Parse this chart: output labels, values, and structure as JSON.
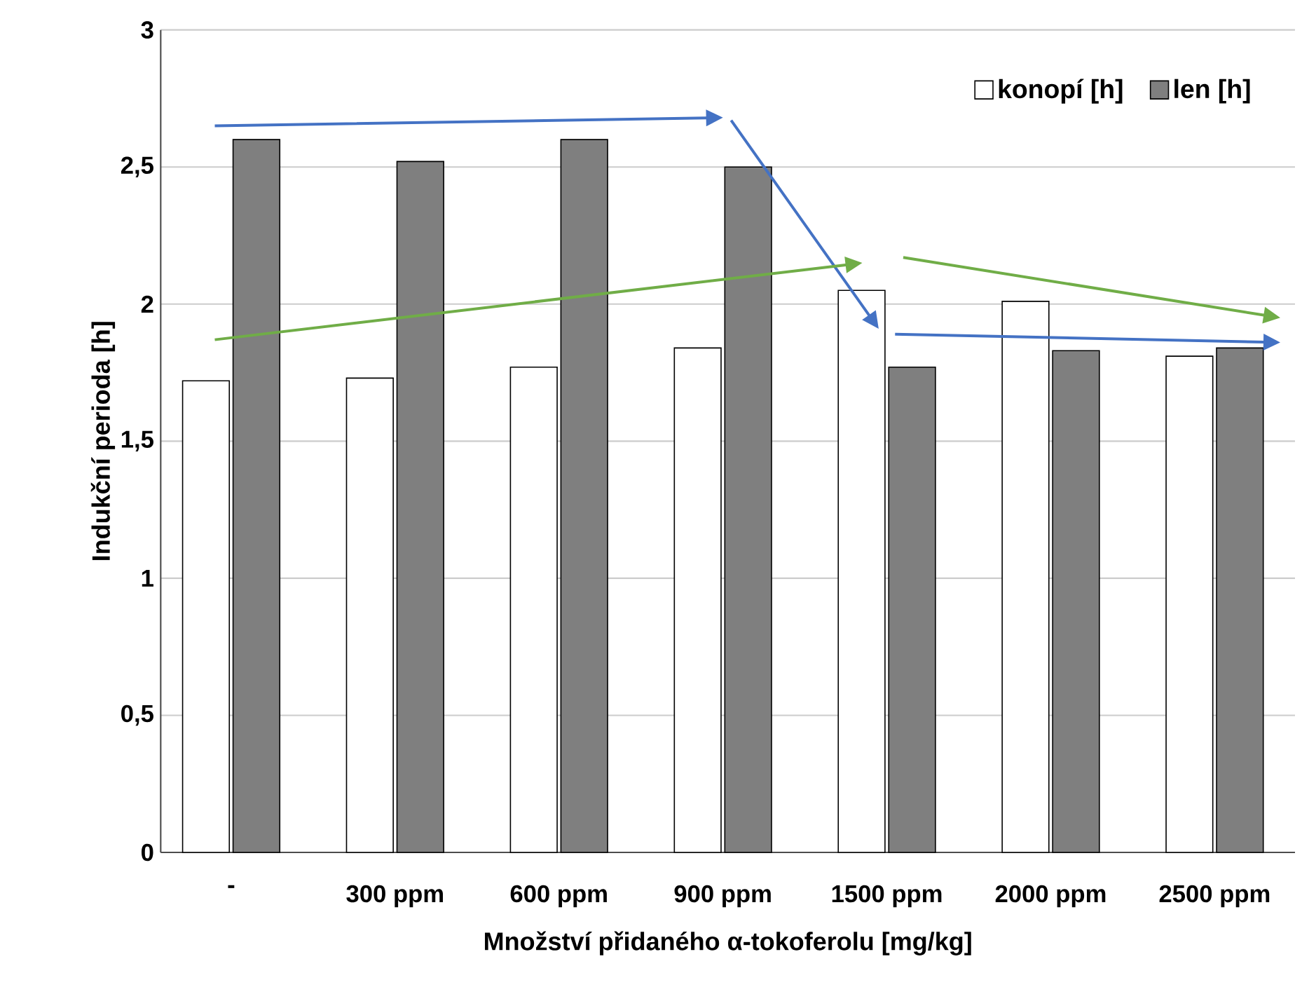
{
  "chart_data": {
    "type": "bar",
    "xlabel": "Množství přidaného α-tokoferolu [mg/kg]",
    "ylabel": "Indukční perioda [h]",
    "categories": [
      "-",
      "300 ppm",
      "600 ppm",
      "900 ppm",
      "1500 ppm",
      "2000 ppm",
      "2500 ppm"
    ],
    "series": [
      {
        "name": "konopí [h]",
        "color": "#ffffff",
        "values": [
          1.72,
          1.73,
          1.77,
          1.84,
          2.05,
          2.01,
          1.81
        ]
      },
      {
        "name": "len [h]",
        "color": "#7f7f7f",
        "values": [
          2.6,
          2.52,
          2.6,
          2.5,
          1.77,
          1.83,
          1.84
        ]
      }
    ],
    "ylim": [
      0,
      3
    ],
    "yticks": [
      0,
      {
        "value": 0.5,
        "label": "0,5"
      },
      1,
      {
        "value": 1.5,
        "label": "1,5"
      },
      2,
      {
        "value": 2.5,
        "label": "2,5"
      },
      3
    ],
    "grid": "y",
    "legend": "top right"
  }
}
